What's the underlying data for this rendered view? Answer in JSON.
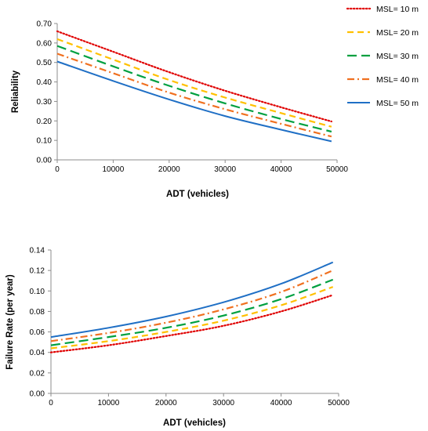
{
  "chart_data": [
    {
      "type": "line",
      "title": "",
      "xlabel": "ADT (vehicles)",
      "ylabel": "Reliability",
      "xlim": [
        0,
        50000
      ],
      "ylim": [
        0,
        0.7
      ],
      "xticks": [
        0,
        10000,
        20000,
        30000,
        40000,
        50000
      ],
      "yticks": [
        "0.00",
        "0.10",
        "0.20",
        "0.30",
        "0.40",
        "0.50",
        "0.60",
        "0.70"
      ],
      "grid": false,
      "legend": "right",
      "x": [
        0,
        10000,
        20000,
        30000,
        40000,
        49000
      ],
      "series": [
        {
          "name": "MSL= 10 m",
          "color": "#e00000",
          "dash": "dotted",
          "values": [
            0.66,
            0.555,
            0.45,
            0.355,
            0.27,
            0.197
          ]
        },
        {
          "name": "MSL= 20 m",
          "color": "#ffc000",
          "dash": "dashed",
          "values": [
            0.62,
            0.515,
            0.41,
            0.32,
            0.24,
            0.17
          ]
        },
        {
          "name": "MSL= 30 m",
          "color": "#00a040",
          "dash": "long-dash",
          "values": [
            0.585,
            0.48,
            0.38,
            0.29,
            0.21,
            0.145
          ]
        },
        {
          "name": "MSL= 40 m",
          "color": "#f07020",
          "dash": "dash-dot",
          "values": [
            0.545,
            0.445,
            0.345,
            0.26,
            0.185,
            0.12
          ]
        },
        {
          "name": "MSL= 50 m",
          "color": "#1f6fc5",
          "dash": "solid",
          "values": [
            0.505,
            0.405,
            0.31,
            0.225,
            0.155,
            0.095
          ]
        }
      ]
    },
    {
      "type": "line",
      "title": "",
      "xlabel": "ADT (vehicles)",
      "ylabel": "Failure Rate (per year)",
      "xlim": [
        0,
        50000
      ],
      "ylim": [
        0,
        0.14
      ],
      "xticks": [
        0,
        10000,
        20000,
        30000,
        40000,
        50000
      ],
      "yticks": [
        "0.00",
        "0.02",
        "0.04",
        "0.06",
        "0.08",
        "0.10",
        "0.12",
        "0.14"
      ],
      "grid": false,
      "legend": "none",
      "x": [
        0,
        10000,
        20000,
        30000,
        40000,
        49000
      ],
      "series": [
        {
          "name": "MSL= 10 m",
          "color": "#e00000",
          "dash": "dotted",
          "values": [
            0.04,
            0.047,
            0.056,
            0.066,
            0.08,
            0.096
          ]
        },
        {
          "name": "MSL= 20 m",
          "color": "#ffc000",
          "dash": "dashed",
          "values": [
            0.044,
            0.051,
            0.06,
            0.071,
            0.086,
            0.104
          ]
        },
        {
          "name": "MSL= 30 m",
          "color": "#00a040",
          "dash": "long-dash",
          "values": [
            0.047,
            0.055,
            0.064,
            0.076,
            0.092,
            0.111
          ]
        },
        {
          "name": "MSL= 40 m",
          "color": "#f07020",
          "dash": "dash-dot",
          "values": [
            0.051,
            0.059,
            0.069,
            0.082,
            0.099,
            0.12
          ]
        },
        {
          "name": "MSL= 50 m",
          "color": "#1f6fc5",
          "dash": "solid",
          "values": [
            0.055,
            0.064,
            0.075,
            0.089,
            0.107,
            0.128
          ]
        }
      ]
    }
  ]
}
